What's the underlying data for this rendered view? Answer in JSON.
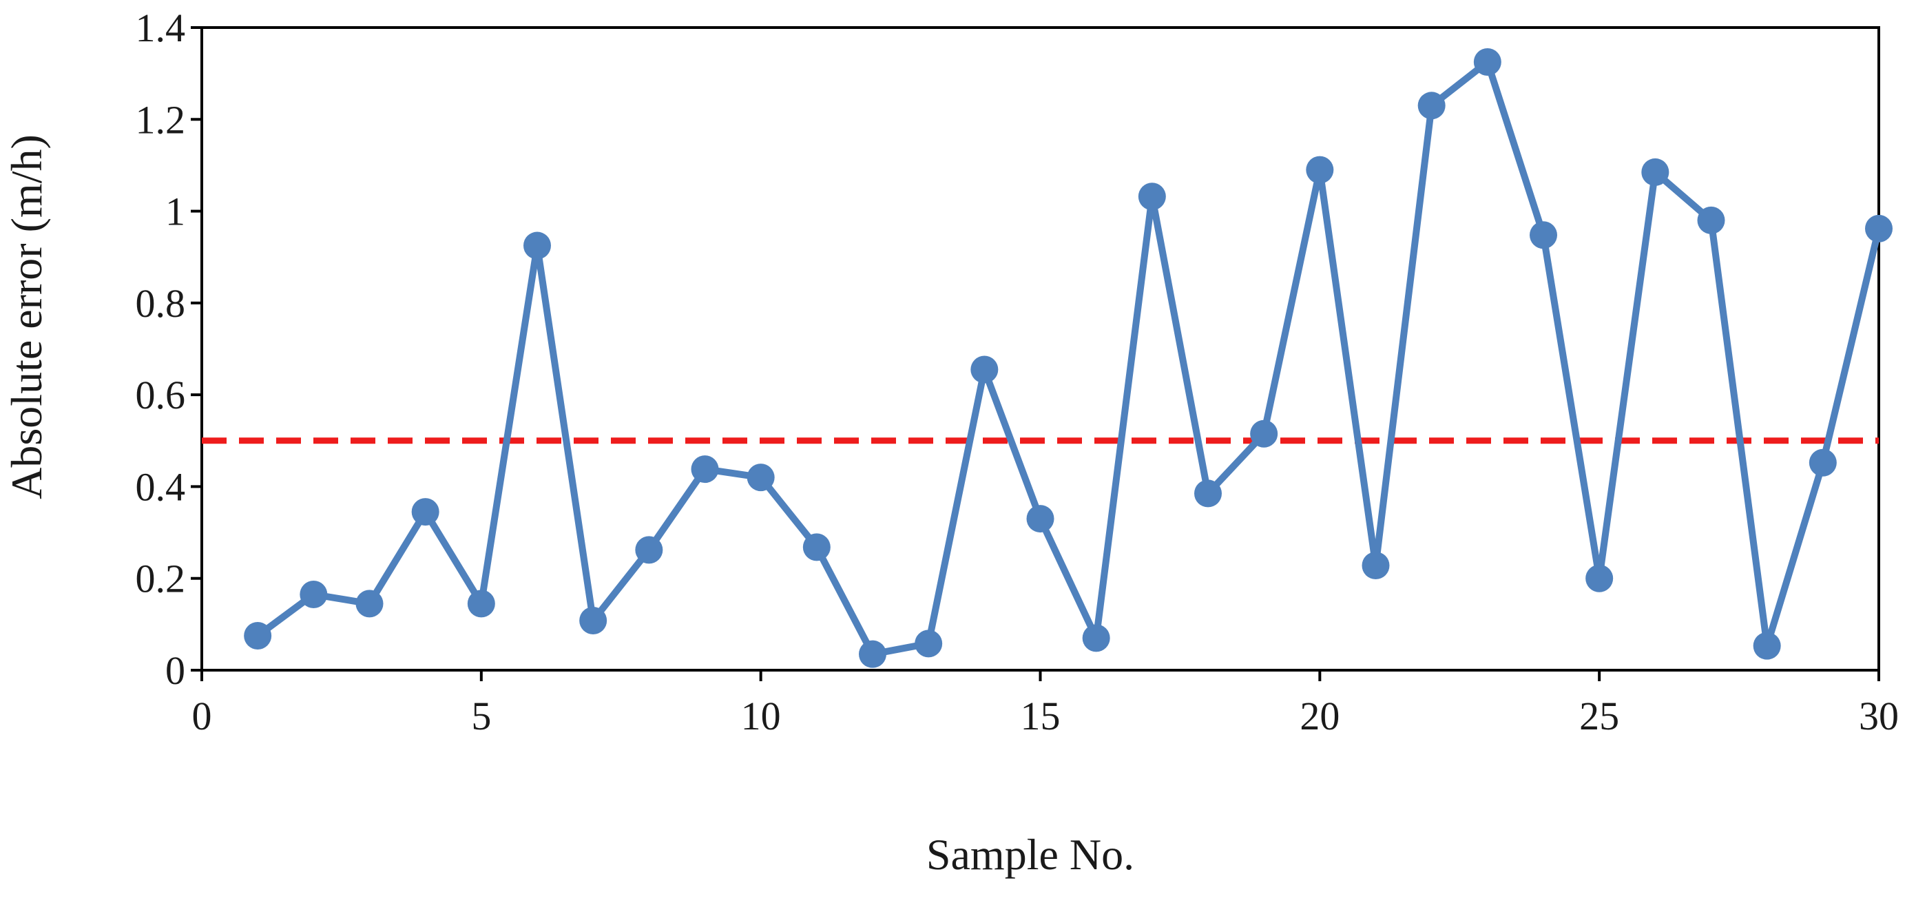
{
  "chart_data": {
    "type": "line",
    "title": "",
    "xlabel": "Sample No.",
    "ylabel": "Absolute error (m/h)",
    "xlim": [
      0,
      30
    ],
    "ylim": [
      0,
      1.4
    ],
    "x_ticks": [
      0,
      5,
      10,
      15,
      20,
      25,
      30
    ],
    "x_tick_labels": [
      "0",
      "5",
      "10",
      "15",
      "20",
      "25",
      "30"
    ],
    "y_ticks": [
      0,
      0.2,
      0.4,
      0.6,
      0.8,
      1.0,
      1.2,
      1.4
    ],
    "y_tick_labels": [
      "0",
      "0.2",
      "0.4",
      "0.6",
      "0.8",
      "1",
      "1.2",
      "1.4"
    ],
    "grid": false,
    "legend": "none",
    "series": [
      {
        "color": "#4f81bd",
        "marker": "circle",
        "x": [
          1,
          2,
          3,
          4,
          5,
          6,
          7,
          8,
          9,
          10,
          11,
          12,
          13,
          14,
          15,
          16,
          17,
          18,
          19,
          20,
          21,
          22,
          23,
          24,
          25,
          26,
          27,
          28,
          29,
          30
        ],
        "values": [
          0.075,
          0.165,
          0.145,
          0.345,
          0.145,
          0.925,
          0.108,
          0.262,
          0.438,
          0.42,
          0.268,
          0.035,
          0.058,
          0.655,
          0.33,
          0.07,
          1.032,
          0.385,
          0.515,
          1.09,
          0.228,
          1.23,
          1.325,
          0.948,
          0.2,
          1.085,
          0.98,
          0.053,
          0.452,
          0.962
        ]
      }
    ],
    "reference_lines": [
      {
        "orientation": "horizontal",
        "y": 0.5,
        "color": "#ee1c1c",
        "style": "dashed"
      }
    ]
  }
}
